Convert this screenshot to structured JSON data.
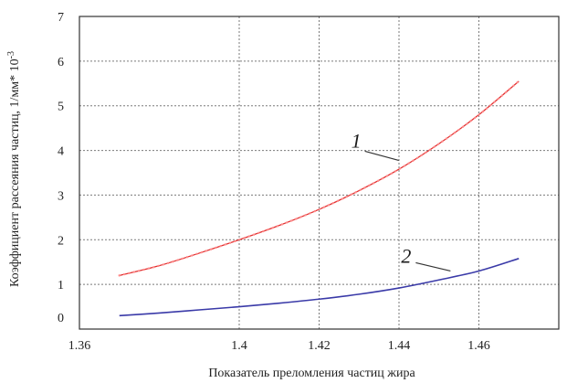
{
  "chart_data": {
    "type": "line",
    "title": "",
    "xlabel": "Показатель преломления частиц жира",
    "ylabel": "Коэффициент рассеяния частиц, 1/мм* 10",
    "ylabel_superscript": "-3",
    "xlim": [
      1.36,
      1.48
    ],
    "ylim": [
      0,
      7
    ],
    "xticks": [
      1.36,
      1.4,
      1.42,
      1.44,
      1.46
    ],
    "xtick_labels": [
      "1.36",
      "1.4",
      "1.42",
      "1.44",
      "1.46"
    ],
    "yticks": [
      0,
      1,
      2,
      3,
      4,
      5,
      6,
      7
    ],
    "ytick_labels": [
      "0",
      "1",
      "2",
      "3",
      "4",
      "5",
      "6",
      "7"
    ],
    "grid": true,
    "series": [
      {
        "name": "1",
        "color": "#e03030",
        "style": "dotted-line",
        "x": [
          1.37,
          1.38,
          1.39,
          1.4,
          1.41,
          1.42,
          1.43,
          1.44,
          1.45,
          1.46,
          1.47
        ],
        "y": [
          1.2,
          1.42,
          1.7,
          2.0,
          2.32,
          2.68,
          3.1,
          3.58,
          4.15,
          4.8,
          5.55
        ]
      },
      {
        "name": "2",
        "color": "#3a3aa8",
        "style": "solid",
        "x": [
          1.37,
          1.38,
          1.39,
          1.4,
          1.41,
          1.42,
          1.43,
          1.44,
          1.45,
          1.46,
          1.47
        ],
        "y": [
          0.3,
          0.36,
          0.43,
          0.5,
          0.58,
          0.67,
          0.78,
          0.92,
          1.1,
          1.3,
          1.58
        ]
      }
    ],
    "annotations": [
      {
        "text": "1",
        "series": "1"
      },
      {
        "text": "2",
        "series": "2"
      }
    ]
  }
}
